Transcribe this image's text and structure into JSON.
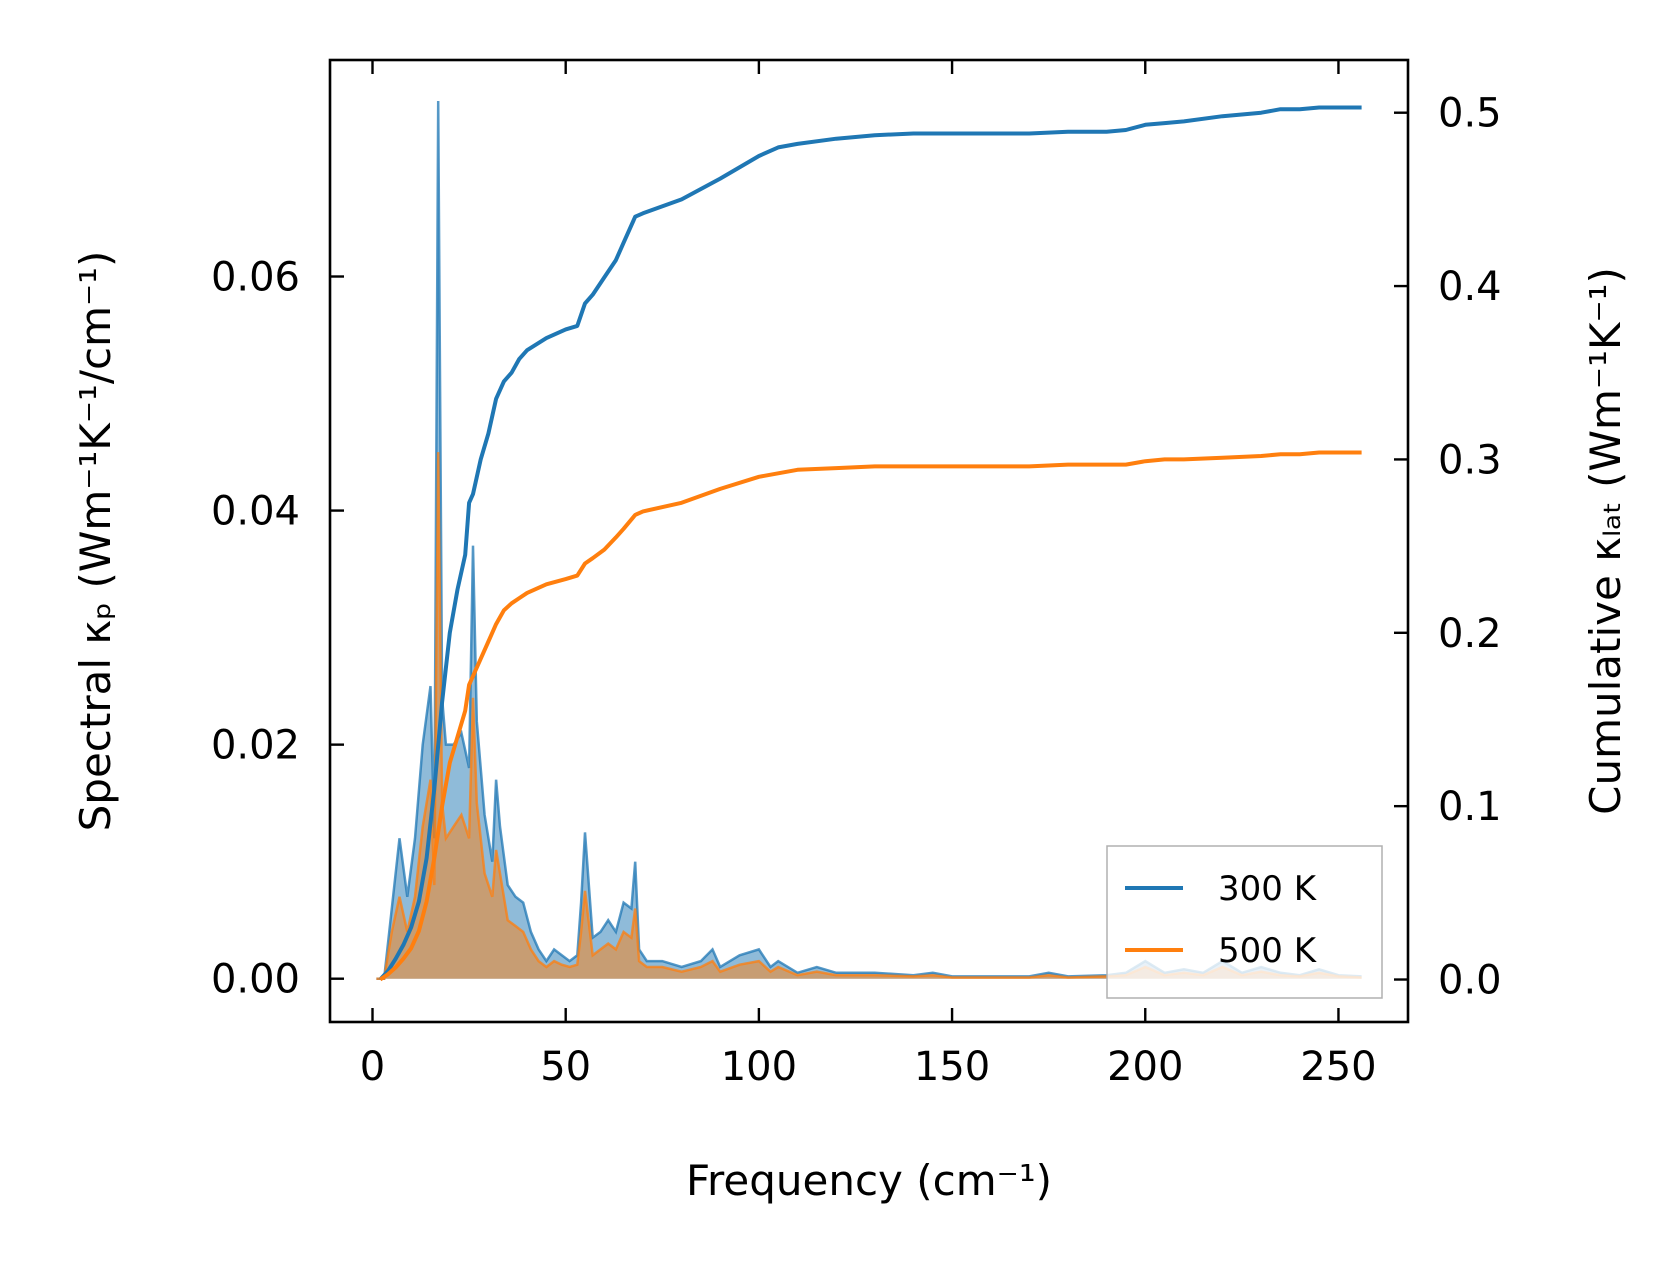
{
  "chart_data": {
    "type": "line",
    "title": "",
    "xlabel": "Frequency (cm⁻¹)",
    "ylabel_left": "Spectral κₚ (Wm⁻¹K⁻¹/cm⁻¹)",
    "ylabel_right": "Cumulative κₗₐₜ (Wm⁻¹K⁻¹)",
    "xlim": [
      -11,
      268
    ],
    "ylim_left": [
      -0.0037,
      0.0785
    ],
    "ylim_right": [
      -0.0245,
      0.5304
    ],
    "xticks": [
      0,
      50,
      100,
      150,
      200,
      250
    ],
    "xtick_labels": [
      "0",
      "50",
      "100",
      "150",
      "200",
      "250"
    ],
    "yticks_left": [
      0.0,
      0.02,
      0.04,
      0.06
    ],
    "ytick_labels_left": [
      "0.00",
      "0.02",
      "0.04",
      "0.06"
    ],
    "yticks_right": [
      0.0,
      0.1,
      0.2,
      0.3,
      0.4,
      0.5
    ],
    "ytick_labels_right": [
      "0.0",
      "0.1",
      "0.2",
      "0.3",
      "0.4",
      "0.5"
    ],
    "grid": false,
    "legend_position": "bottom-right",
    "legend": [
      "300 K",
      "500 K"
    ],
    "colors": {
      "blue": "#1f77b4",
      "orange": "#ff7f0e"
    },
    "spectral_x": [
      1,
      3,
      5,
      7,
      9,
      11,
      13,
      15,
      16,
      17,
      18,
      19,
      21,
      23,
      25,
      26,
      27,
      29,
      31,
      32,
      33,
      35,
      37,
      39,
      41,
      43,
      45,
      47,
      49,
      51,
      53,
      54,
      55,
      57,
      59,
      61,
      63,
      65,
      67,
      68,
      69,
      71,
      75,
      80,
      85,
      88,
      90,
      95,
      100,
      103,
      105,
      110,
      115,
      120,
      130,
      140,
      145,
      150,
      160,
      170,
      175,
      180,
      190,
      195,
      200,
      205,
      210,
      215,
      220,
      225,
      230,
      235,
      240,
      245,
      250,
      256
    ],
    "series_spectral": [
      {
        "name": "300 K",
        "values": [
          0,
          0,
          0.006,
          0.012,
          0.007,
          0.012,
          0.02,
          0.025,
          0.012,
          0.075,
          0.024,
          0.02,
          0.02,
          0.021,
          0.018,
          0.037,
          0.022,
          0.014,
          0.01,
          0.017,
          0.013,
          0.008,
          0.007,
          0.0065,
          0.004,
          0.0025,
          0.0015,
          0.0025,
          0.002,
          0.0015,
          0.002,
          0.0065,
          0.0125,
          0.0035,
          0.004,
          0.005,
          0.004,
          0.0065,
          0.006,
          0.01,
          0.0025,
          0.0015,
          0.0015,
          0.001,
          0.0015,
          0.0025,
          0.001,
          0.002,
          0.0025,
          0.001,
          0.0015,
          0.0005,
          0.001,
          0.0005,
          0.0005,
          0.0003,
          0.0005,
          0.0002,
          0.0002,
          0.0002,
          0.0005,
          0.0002,
          0.0003,
          0.0005,
          0.0015,
          0.0005,
          0.0008,
          0.0005,
          0.0015,
          0.0005,
          0.001,
          0.0005,
          0.0003,
          0.0008,
          0.0003,
          0.0002
        ]
      },
      {
        "name": "500 K",
        "values": [
          0,
          0,
          0.004,
          0.007,
          0.004,
          0.007,
          0.013,
          0.017,
          0.008,
          0.045,
          0.015,
          0.012,
          0.013,
          0.014,
          0.012,
          0.024,
          0.015,
          0.009,
          0.007,
          0.011,
          0.009,
          0.005,
          0.0045,
          0.004,
          0.0025,
          0.0015,
          0.001,
          0.0015,
          0.0012,
          0.001,
          0.0012,
          0.004,
          0.0075,
          0.002,
          0.0025,
          0.003,
          0.0025,
          0.004,
          0.0035,
          0.006,
          0.0015,
          0.001,
          0.001,
          0.0006,
          0.001,
          0.0015,
          0.0006,
          0.0012,
          0.0015,
          0.0006,
          0.001,
          0.0003,
          0.0006,
          0.0003,
          0.0003,
          0.0002,
          0.0003,
          0.0001,
          0.0001,
          0.0001,
          0.0003,
          0.0001,
          0.0002,
          0.0003,
          0.001,
          0.0003,
          0.0005,
          0.0003,
          0.001,
          0.0003,
          0.0006,
          0.0003,
          0.0002,
          0.0005,
          0.0002,
          0.0001
        ]
      }
    ],
    "cumulative_x": [
      2,
      4,
      6,
      8,
      10,
      12,
      14,
      16,
      18,
      20,
      22,
      24,
      25,
      26,
      28,
      30,
      32,
      34,
      36,
      38,
      40,
      45,
      50,
      53,
      55,
      57,
      60,
      63,
      65,
      68,
      70,
      80,
      90,
      100,
      105,
      110,
      120,
      130,
      140,
      150,
      160,
      170,
      180,
      190,
      195,
      200,
      205,
      210,
      220,
      230,
      235,
      240,
      245,
      250,
      256
    ],
    "series_cumulative": [
      {
        "name": "300 K",
        "values": [
          0,
          0.005,
          0.012,
          0.02,
          0.03,
          0.045,
          0.07,
          0.11,
          0.16,
          0.2,
          0.225,
          0.245,
          0.275,
          0.28,
          0.3,
          0.315,
          0.335,
          0.345,
          0.35,
          0.358,
          0.363,
          0.37,
          0.375,
          0.377,
          0.39,
          0.395,
          0.405,
          0.415,
          0.425,
          0.44,
          0.442,
          0.45,
          0.462,
          0.475,
          0.48,
          0.482,
          0.485,
          0.487,
          0.488,
          0.488,
          0.488,
          0.488,
          0.489,
          0.489,
          0.49,
          0.493,
          0.494,
          0.495,
          0.498,
          0.5,
          0.502,
          0.502,
          0.503,
          0.503,
          0.503
        ]
      },
      {
        "name": "500 K",
        "values": [
          0,
          0.003,
          0.007,
          0.012,
          0.018,
          0.028,
          0.045,
          0.07,
          0.1,
          0.125,
          0.14,
          0.155,
          0.17,
          0.175,
          0.185,
          0.195,
          0.205,
          0.213,
          0.217,
          0.22,
          0.223,
          0.228,
          0.231,
          0.233,
          0.24,
          0.243,
          0.248,
          0.255,
          0.26,
          0.268,
          0.27,
          0.275,
          0.283,
          0.29,
          0.292,
          0.294,
          0.295,
          0.296,
          0.296,
          0.296,
          0.296,
          0.296,
          0.297,
          0.297,
          0.297,
          0.299,
          0.3,
          0.3,
          0.301,
          0.302,
          0.303,
          0.303,
          0.304,
          0.304,
          0.304
        ]
      }
    ]
  }
}
